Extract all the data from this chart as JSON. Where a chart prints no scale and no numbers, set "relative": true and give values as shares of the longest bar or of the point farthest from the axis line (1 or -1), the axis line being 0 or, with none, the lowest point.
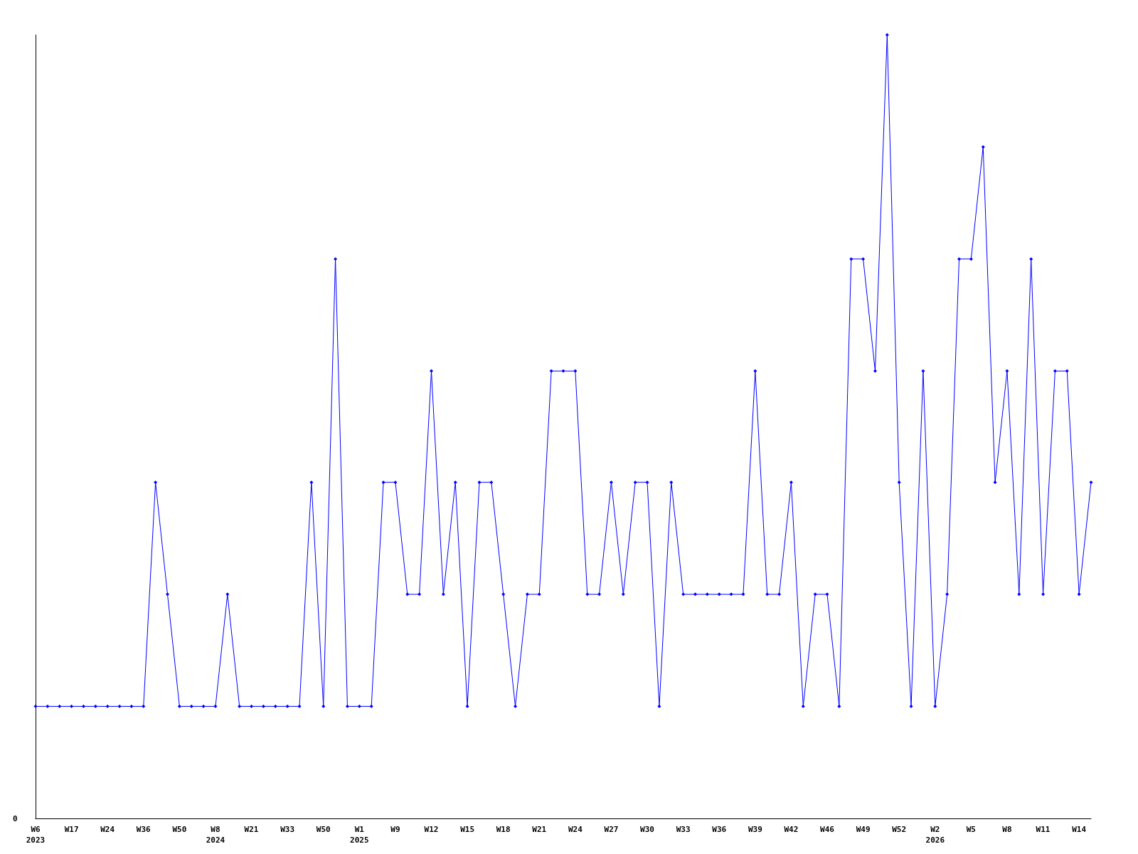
{
  "chart_data": {
    "type": "line",
    "relative": true,
    "color": "#0000ff",
    "marker": "diamond",
    "annotations": [
      "0"
    ],
    "categories": [
      "W6\n2023",
      null,
      null,
      "W17",
      null,
      null,
      "W24",
      null,
      null,
      "W36",
      null,
      null,
      "W50",
      null,
      null,
      "W8\n2024",
      null,
      null,
      "W21",
      null,
      null,
      "W33",
      null,
      null,
      "W50",
      null,
      null,
      "W1\n2025",
      null,
      null,
      "W9",
      null,
      null,
      "W12",
      null,
      null,
      "W15",
      null,
      null,
      "W18",
      null,
      null,
      "W21",
      null,
      null,
      "W24",
      null,
      null,
      "W27",
      null,
      null,
      "W30",
      null,
      null,
      "W33",
      null,
      null,
      "W36",
      null,
      null,
      "W39",
      null,
      null,
      "W42",
      null,
      null,
      "W46",
      null,
      null,
      "W49",
      null,
      null,
      "W52",
      null,
      null,
      "W2\n2026",
      null,
      null,
      "W5",
      null,
      null,
      "W8",
      null,
      null,
      "W11",
      null,
      null,
      "W14",
      null
    ],
    "values": [
      0.143,
      0.143,
      0.143,
      0.143,
      0.143,
      0.143,
      0.143,
      0.143,
      0.143,
      0.143,
      0.429,
      0.286,
      0.143,
      0.143,
      0.143,
      0.143,
      0.286,
      0.143,
      0.143,
      0.143,
      0.143,
      0.143,
      0.143,
      0.429,
      0.143,
      0.714,
      0.143,
      0.143,
      0.143,
      0.429,
      0.429,
      0.286,
      0.286,
      0.571,
      0.286,
      0.429,
      0.143,
      0.429,
      0.429,
      0.286,
      0.143,
      0.286,
      0.286,
      0.571,
      0.571,
      0.571,
      0.286,
      0.286,
      0.429,
      0.286,
      0.429,
      0.429,
      0.143,
      0.429,
      0.286,
      0.286,
      0.286,
      0.286,
      0.286,
      0.286,
      0.571,
      0.286,
      0.286,
      0.429,
      0.143,
      0.286,
      0.286,
      0.143,
      0.714,
      0.714,
      0.571,
      1,
      0.429,
      0.143,
      0.571,
      0.143,
      0.286,
      0.714,
      0.714,
      0.857,
      0.429,
      0.571,
      0.286,
      0.714,
      0.286,
      0.571,
      0.571,
      0.286,
      0.429
    ]
  }
}
